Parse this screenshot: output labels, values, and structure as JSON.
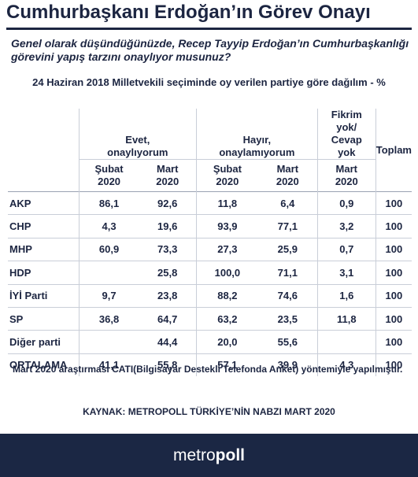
{
  "title": "Cumhurbaşkanı Erdoğan’ın Görev Onayı",
  "question": "Genel olarak düşündüğünüzde, Recep Tayyip Erdoğan’ın Cumhurbaşkanlığı görevini yapış tarzını onaylıyor musunuz?",
  "subtitle": "24 Haziran 2018 Milletvekili seçiminde oy verilen partiye göre dağılım - %",
  "table": {
    "groups": {
      "approve": "Evet, onaylıyorum",
      "disapprove": "Hayır, onaylamıyorum",
      "no_opinion": "Fikrim yok/ Cevap yok",
      "total": "Toplam"
    },
    "periods": {
      "feb": "Şubat 2020",
      "mar": "Mart 2020"
    },
    "rows": [
      {
        "party": "AKP",
        "ev_feb": "86,1",
        "ev_mar": "92,6",
        "ha_feb": "11,8",
        "ha_mar": "6,4",
        "fy_mar": "0,9",
        "total": "100"
      },
      {
        "party": "CHP",
        "ev_feb": "4,3",
        "ev_mar": "19,6",
        "ha_feb": "93,9",
        "ha_mar": "77,1",
        "fy_mar": "3,2",
        "total": "100"
      },
      {
        "party": "MHP",
        "ev_feb": "60,9",
        "ev_mar": "73,3",
        "ha_feb": "27,3",
        "ha_mar": "25,9",
        "fy_mar": "0,7",
        "total": "100"
      },
      {
        "party": "HDP",
        "ev_feb": "",
        "ev_mar": "25,8",
        "ha_feb": "100,0",
        "ha_mar": "71,1",
        "fy_mar": "3,1",
        "total": "100"
      },
      {
        "party": "İYİ Parti",
        "ev_feb": "9,7",
        "ev_mar": "23,8",
        "ha_feb": "88,2",
        "ha_mar": "74,6",
        "fy_mar": "1,6",
        "total": "100"
      },
      {
        "party": "SP",
        "ev_feb": "36,8",
        "ev_mar": "64,7",
        "ha_feb": "63,2",
        "ha_mar": "23,5",
        "fy_mar": "11,8",
        "total": "100"
      },
      {
        "party": "Diğer parti",
        "ev_feb": "",
        "ev_mar": "44,4",
        "ha_feb": "20,0",
        "ha_mar": "55,6",
        "fy_mar": "",
        "total": "100"
      },
      {
        "party": "ORTALAMA",
        "ev_feb": "41,1",
        "ev_mar": "55,8",
        "ha_feb": "57,1",
        "ha_mar": "39,9",
        "fy_mar": "4,3",
        "total": "100"
      }
    ]
  },
  "note": "Mart 2020 araştırması CATI(Bilgisayar Destekli Telefonda Anket) yöntemiyle yapılmıştır.",
  "source": "KAYNAK: METROPOLL TÜRKİYE’NİN NABZI MART 2020",
  "logo": {
    "part1": "metro",
    "part2": "poll"
  },
  "colors": {
    "navy": "#1b2744",
    "text": "#1c2541",
    "rule": "#c9ced8"
  }
}
